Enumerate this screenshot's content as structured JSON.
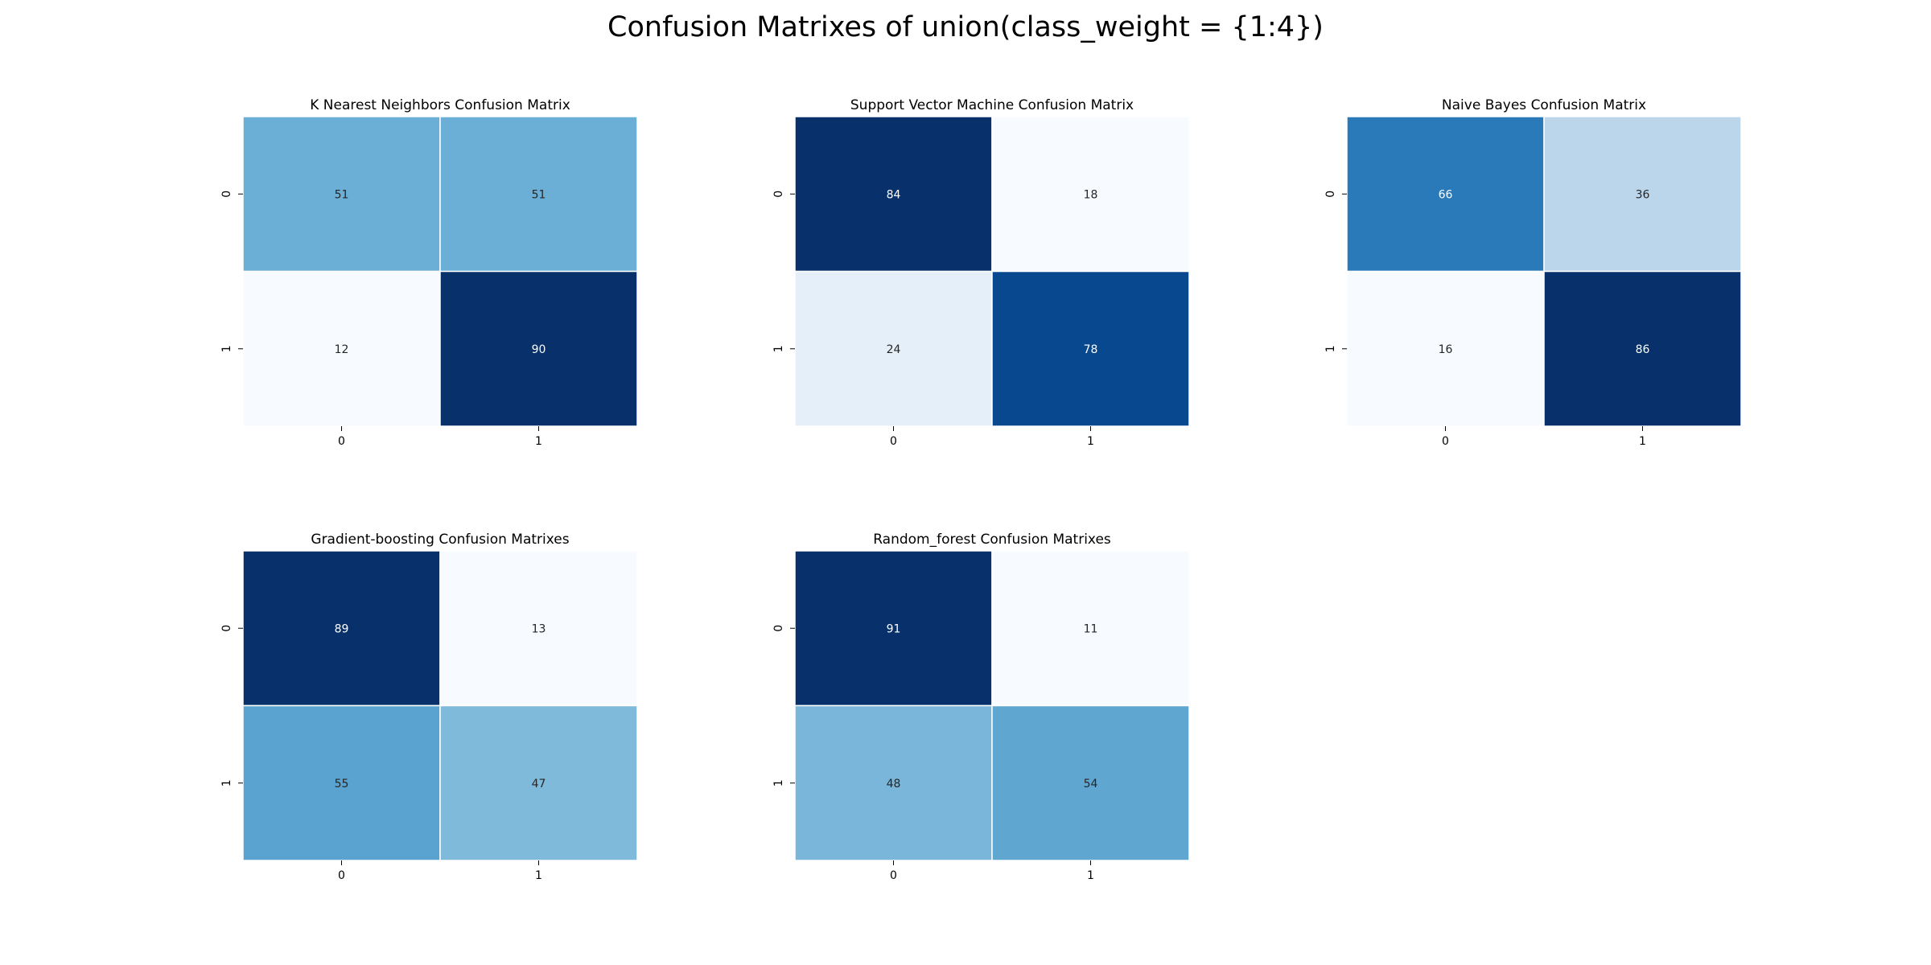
{
  "figure": {
    "title": "Confusion Matrixes of union(class_weight = {1:4})"
  },
  "colormap": {
    "name": "Blues",
    "light": "#f7fbff",
    "dark": "#08306b",
    "stops": [
      "#f7fbff",
      "#deebf7",
      "#c6dbef",
      "#9ecae1",
      "#6baed6",
      "#4292c6",
      "#2171b5",
      "#08519c",
      "#08306b"
    ],
    "cell_separator": "#ffffff"
  },
  "chart_data": [
    {
      "type": "heatmap",
      "title": "K Nearest Neighbors Confusion Matrix",
      "x_ticks": [
        "0",
        "1"
      ],
      "y_ticks": [
        "0",
        "1"
      ],
      "values": [
        [
          51,
          51
        ],
        [
          12,
          90
        ]
      ],
      "annotations": true,
      "colorbar": false
    },
    {
      "type": "heatmap",
      "title": "Support Vector Machine Confusion Matrix",
      "x_ticks": [
        "0",
        "1"
      ],
      "y_ticks": [
        "0",
        "1"
      ],
      "values": [
        [
          84,
          18
        ],
        [
          24,
          78
        ]
      ],
      "annotations": true,
      "colorbar": false
    },
    {
      "type": "heatmap",
      "title": "Naive Bayes Confusion Matrix",
      "x_ticks": [
        "0",
        "1"
      ],
      "y_ticks": [
        "0",
        "1"
      ],
      "values": [
        [
          66,
          36
        ],
        [
          16,
          86
        ]
      ],
      "annotations": true,
      "colorbar": false
    },
    {
      "type": "heatmap",
      "title": "Gradient-boosting Confusion Matrixes",
      "x_ticks": [
        "0",
        "1"
      ],
      "y_ticks": [
        "0",
        "1"
      ],
      "values": [
        [
          89,
          13
        ],
        [
          55,
          47
        ]
      ],
      "annotations": true,
      "colorbar": false
    },
    {
      "type": "heatmap",
      "title": "Random_forest Confusion Matrixes",
      "x_ticks": [
        "0",
        "1"
      ],
      "y_ticks": [
        "0",
        "1"
      ],
      "values": [
        [
          91,
          11
        ],
        [
          48,
          54
        ]
      ],
      "annotations": true,
      "colorbar": false
    }
  ]
}
